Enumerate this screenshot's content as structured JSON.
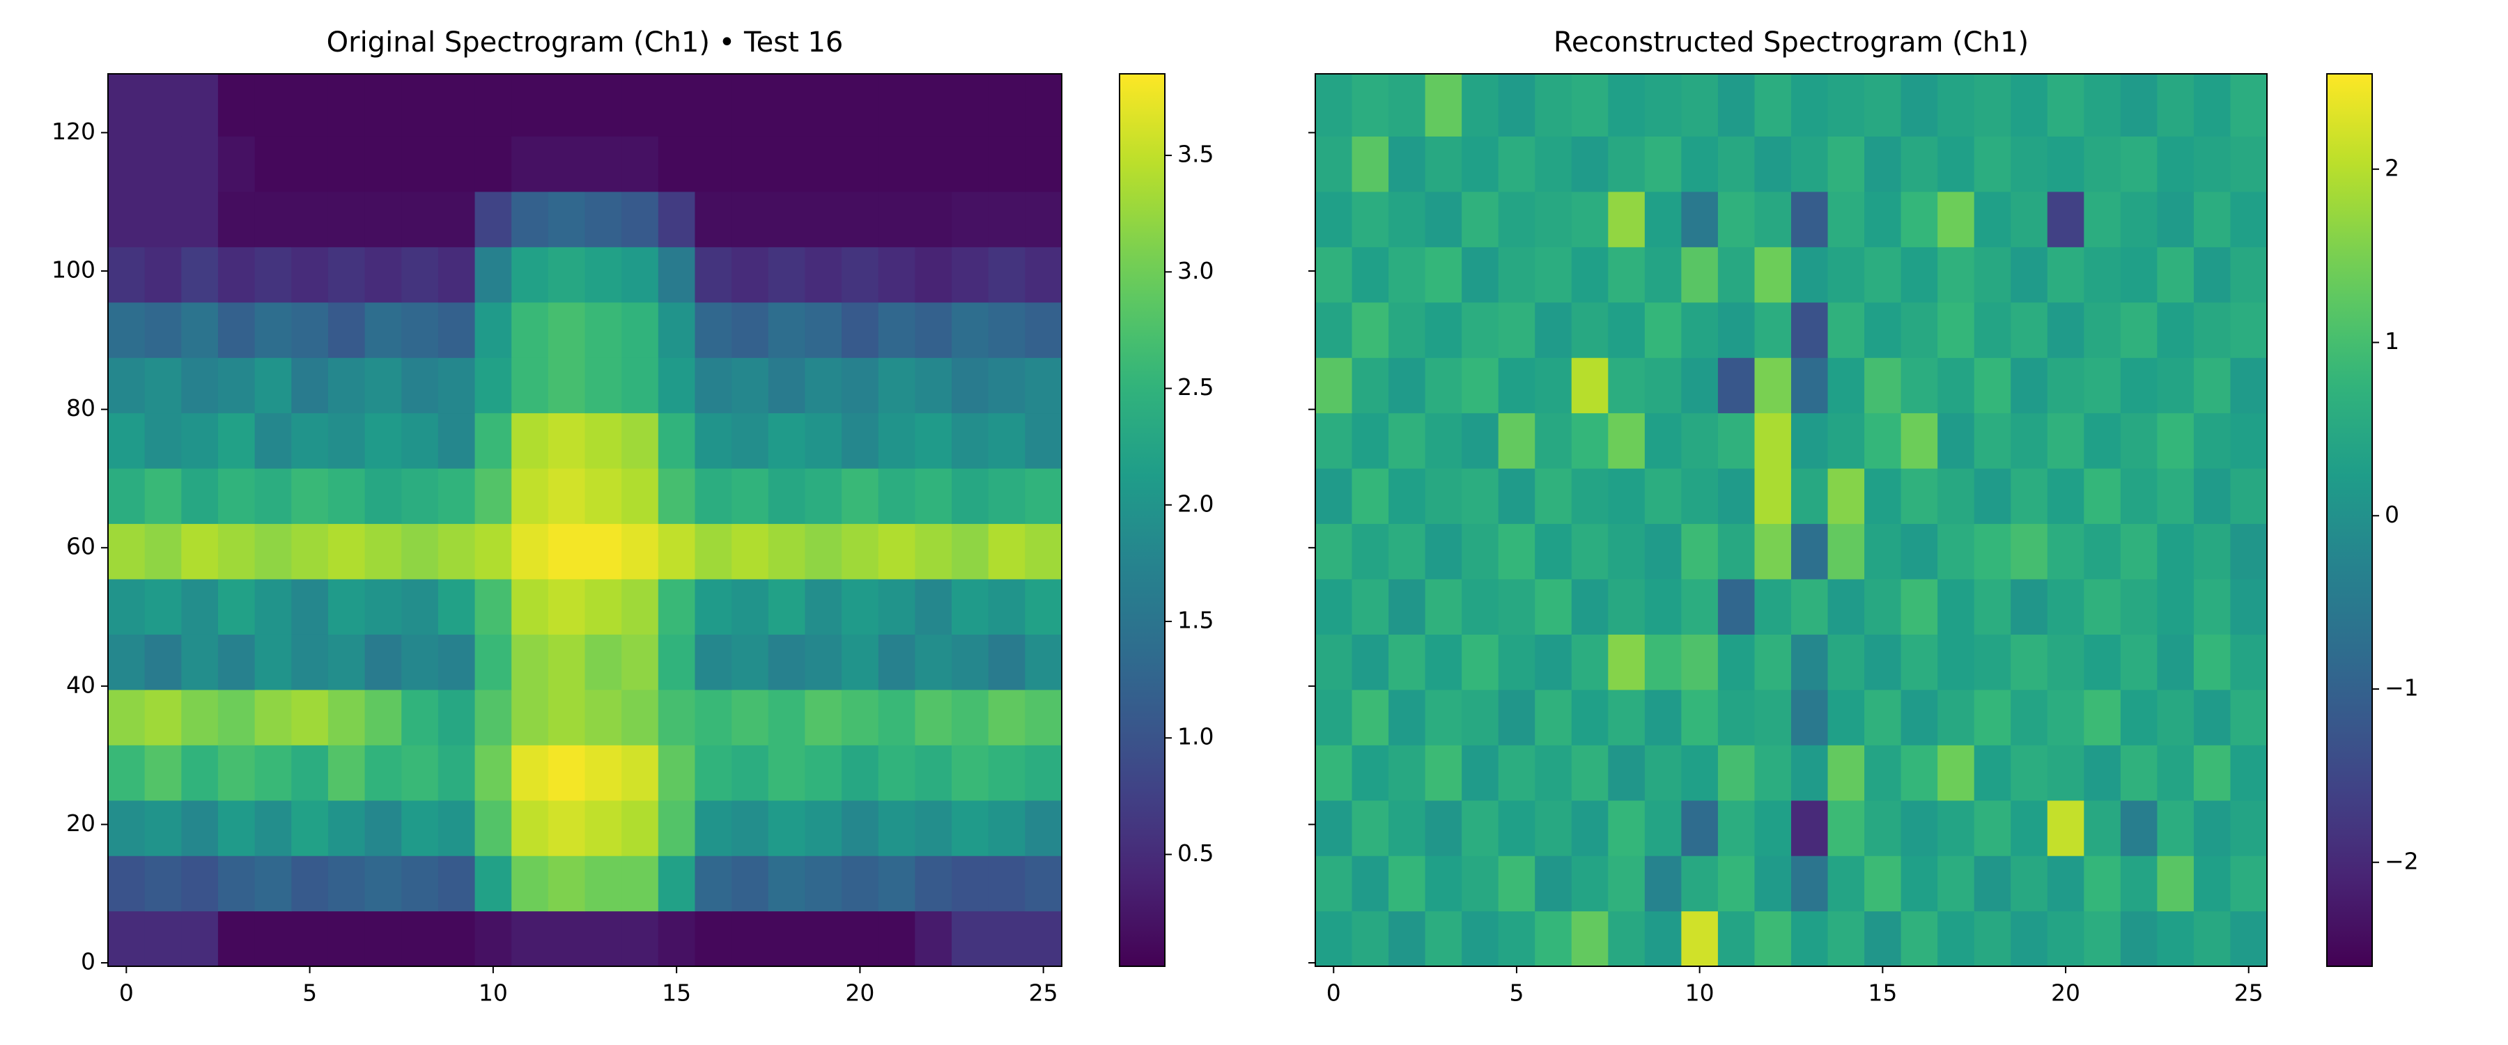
{
  "chart_data": [
    {
      "type": "heatmap",
      "title": "Original Spectrogram (Ch1) • Test 16",
      "colormap": "viridis",
      "x": [
        0,
        1,
        2,
        3,
        4,
        5,
        6,
        7,
        8,
        9,
        10,
        11,
        12,
        13,
        14,
        15,
        16,
        17,
        18,
        19,
        20,
        21,
        22,
        23,
        24,
        25
      ],
      "y_edges": [
        -0.5,
        7.5,
        15.5,
        23.5,
        31.5,
        39.5,
        47.5,
        55.5,
        63.5,
        71.5,
        79.5,
        87.5,
        95.5,
        103.5,
        111.5,
        119.5,
        128.5
      ],
      "xlim": [
        -0.5,
        25.5
      ],
      "ylim": [
        -0.5,
        128.5
      ],
      "xticks": [
        0,
        5,
        10,
        15,
        20,
        25
      ],
      "yticks": [
        0,
        20,
        40,
        60,
        80,
        100,
        120
      ],
      "ytick_labels": true,
      "clim": [
        0.02,
        3.85
      ],
      "cticks": [
        0.5,
        {
          "value": 1,
          "label": "1.0"
        },
        1.5,
        {
          "value": 2,
          "label": "2.0"
        },
        2.5,
        {
          "value": 3,
          "label": "3.0"
        },
        3.5
      ],
      "values": [
        [
          0.5,
          0.5,
          0.5,
          0.1,
          0.1,
          0.1,
          0.1,
          0.1,
          0.1,
          0.1,
          0.2,
          0.3,
          0.3,
          0.3,
          0.3,
          0.2,
          0.1,
          0.1,
          0.1,
          0.1,
          0.1,
          0.1,
          0.3,
          0.6,
          0.6,
          0.6
        ],
        [
          1.0,
          1.1,
          1.0,
          1.2,
          1.3,
          1.1,
          1.2,
          1.3,
          1.2,
          1.1,
          2.2,
          3.0,
          3.1,
          3.0,
          3.0,
          2.2,
          1.3,
          1.2,
          1.4,
          1.3,
          1.2,
          1.3,
          1.1,
          1.0,
          1.0,
          1.1
        ],
        [
          1.9,
          2.0,
          1.8,
          2.1,
          1.9,
          2.2,
          2.0,
          1.8,
          2.1,
          2.0,
          2.8,
          3.5,
          3.6,
          3.5,
          3.4,
          2.8,
          2.0,
          1.9,
          2.1,
          2.0,
          1.8,
          2.0,
          1.9,
          2.1,
          2.0,
          1.8
        ],
        [
          2.6,
          2.8,
          2.5,
          2.7,
          2.6,
          2.4,
          2.8,
          2.5,
          2.6,
          2.4,
          3.0,
          3.7,
          3.8,
          3.7,
          3.6,
          2.9,
          2.5,
          2.4,
          2.6,
          2.5,
          2.3,
          2.5,
          2.4,
          2.6,
          2.5,
          2.4
        ],
        [
          3.2,
          3.3,
          3.1,
          3.0,
          3.2,
          3.3,
          3.1,
          2.9,
          2.5,
          2.3,
          2.8,
          3.2,
          3.3,
          3.2,
          3.1,
          2.7,
          2.6,
          2.7,
          2.6,
          2.8,
          2.7,
          2.6,
          2.8,
          2.7,
          2.9,
          2.8
        ],
        [
          1.8,
          1.6,
          1.9,
          1.7,
          2.0,
          1.8,
          1.9,
          1.6,
          1.8,
          1.7,
          2.6,
          3.2,
          3.3,
          3.1,
          3.2,
          2.5,
          1.8,
          1.9,
          1.7,
          1.8,
          2.0,
          1.7,
          1.9,
          1.8,
          1.6,
          1.9
        ],
        [
          2.0,
          2.1,
          1.9,
          2.2,
          2.0,
          1.8,
          2.1,
          2.0,
          1.9,
          2.2,
          2.7,
          3.4,
          3.5,
          3.4,
          3.3,
          2.6,
          2.1,
          2.0,
          2.2,
          1.9,
          2.1,
          2.0,
          1.8,
          2.1,
          2.0,
          2.2
        ],
        [
          3.3,
          3.2,
          3.4,
          3.3,
          3.2,
          3.3,
          3.4,
          3.3,
          3.2,
          3.3,
          3.4,
          3.7,
          3.8,
          3.8,
          3.7,
          3.5,
          3.3,
          3.4,
          3.3,
          3.2,
          3.3,
          3.4,
          3.3,
          3.2,
          3.4,
          3.3
        ],
        [
          2.4,
          2.6,
          2.3,
          2.5,
          2.4,
          2.6,
          2.5,
          2.3,
          2.4,
          2.5,
          2.8,
          3.5,
          3.6,
          3.5,
          3.4,
          2.7,
          2.4,
          2.5,
          2.3,
          2.4,
          2.6,
          2.4,
          2.5,
          2.3,
          2.4,
          2.5
        ],
        [
          2.1,
          1.9,
          2.0,
          2.2,
          1.8,
          2.0,
          1.9,
          2.1,
          2.0,
          1.8,
          2.6,
          3.4,
          3.5,
          3.4,
          3.3,
          2.5,
          2.0,
          1.9,
          2.1,
          2.0,
          1.8,
          2.0,
          2.1,
          1.9,
          2.0,
          1.8
        ],
        [
          1.8,
          1.9,
          1.7,
          1.8,
          2.0,
          1.6,
          1.8,
          1.9,
          1.7,
          1.8,
          2.2,
          2.6,
          2.7,
          2.6,
          2.5,
          2.1,
          1.7,
          1.8,
          1.6,
          1.8,
          1.7,
          1.9,
          1.8,
          1.6,
          1.7,
          1.8
        ],
        [
          1.4,
          1.3,
          1.5,
          1.2,
          1.4,
          1.3,
          1.1,
          1.4,
          1.3,
          1.2,
          2.1,
          2.6,
          2.7,
          2.6,
          2.5,
          2.0,
          1.3,
          1.2,
          1.4,
          1.3,
          1.1,
          1.3,
          1.2,
          1.4,
          1.3,
          1.2
        ],
        [
          0.6,
          0.5,
          0.7,
          0.5,
          0.6,
          0.5,
          0.6,
          0.5,
          0.6,
          0.5,
          1.7,
          2.2,
          2.3,
          2.2,
          2.1,
          1.6,
          0.6,
          0.5,
          0.6,
          0.5,
          0.6,
          0.5,
          0.4,
          0.5,
          0.6,
          0.5
        ],
        [
          0.4,
          0.4,
          0.4,
          0.15,
          0.15,
          0.15,
          0.15,
          0.15,
          0.15,
          0.15,
          0.8,
          1.2,
          1.3,
          1.2,
          1.1,
          0.7,
          0.15,
          0.15,
          0.15,
          0.15,
          0.15,
          0.15,
          0.15,
          0.2,
          0.2,
          0.2
        ],
        [
          0.4,
          0.4,
          0.4,
          0.2,
          0.1,
          0.1,
          0.1,
          0.1,
          0.1,
          0.1,
          0.1,
          0.2,
          0.2,
          0.2,
          0.2,
          0.1,
          0.1,
          0.1,
          0.1,
          0.1,
          0.1,
          0.1,
          0.1,
          0.1,
          0.1,
          0.1
        ],
        [
          0.4,
          0.4,
          0.4,
          0.1,
          0.1,
          0.1,
          0.1,
          0.1,
          0.1,
          0.1,
          0.1,
          0.1,
          0.1,
          0.1,
          0.1,
          0.1,
          0.1,
          0.1,
          0.1,
          0.1,
          0.1,
          0.1,
          0.1,
          0.1,
          0.1,
          0.1
        ]
      ]
    },
    {
      "type": "heatmap",
      "title": "Reconstructed Spectrogram (Ch1)",
      "colormap": "viridis",
      "x": [
        0,
        1,
        2,
        3,
        4,
        5,
        6,
        7,
        8,
        9,
        10,
        11,
        12,
        13,
        14,
        15,
        16,
        17,
        18,
        19,
        20,
        21,
        22,
        23,
        24,
        25
      ],
      "y_edges": [
        -0.5,
        7.5,
        15.5,
        23.5,
        31.5,
        39.5,
        47.5,
        55.5,
        63.5,
        71.5,
        79.5,
        87.5,
        95.5,
        103.5,
        111.5,
        119.5,
        128.5
      ],
      "xlim": [
        -0.5,
        25.5
      ],
      "ylim": [
        -0.5,
        128.5
      ],
      "xticks": [
        0,
        5,
        10,
        15,
        20,
        25
      ],
      "yticks": [
        0,
        20,
        40,
        60,
        80,
        100,
        120
      ],
      "ytick_labels": false,
      "clim": [
        -2.6,
        2.55
      ],
      "cticks": [
        {
          "value": -2,
          "label": "−2"
        },
        {
          "value": -1,
          "label": "−1"
        },
        0,
        1,
        2
      ],
      "values": [
        [
          0.3,
          0.5,
          0.1,
          0.6,
          0.2,
          0.4,
          0.8,
          1.3,
          0.5,
          0.2,
          2.2,
          0.4,
          0.9,
          0.3,
          0.6,
          0.1,
          0.7,
          0.3,
          0.5,
          0.2,
          0.4,
          0.6,
          0.1,
          0.3,
          0.5,
          0.2
        ],
        [
          0.6,
          0.2,
          0.8,
          0.3,
          0.5,
          0.9,
          0.1,
          0.4,
          0.7,
          -0.3,
          0.5,
          0.8,
          0.2,
          -0.6,
          0.4,
          0.9,
          0.3,
          0.6,
          0.1,
          0.5,
          0.2,
          0.8,
          0.4,
          1.2,
          0.3,
          0.6
        ],
        [
          0.2,
          0.7,
          0.4,
          0.1,
          0.6,
          0.3,
          0.5,
          0.2,
          0.8,
          0.4,
          -0.8,
          0.6,
          0.3,
          -2.0,
          0.9,
          0.5,
          0.2,
          0.4,
          0.7,
          0.3,
          2.1,
          0.5,
          -0.4,
          0.6,
          0.2,
          0.4
        ],
        [
          0.8,
          0.3,
          0.5,
          0.9,
          0.2,
          0.6,
          0.4,
          0.7,
          0.1,
          0.5,
          0.3,
          1.0,
          0.6,
          0.2,
          1.3,
          0.4,
          0.8,
          1.4,
          0.3,
          0.6,
          0.5,
          0.2,
          0.7,
          0.4,
          0.9,
          0.3
        ],
        [
          0.4,
          0.9,
          0.2,
          0.6,
          0.5,
          0.1,
          0.7,
          0.3,
          0.6,
          0.2,
          0.8,
          0.4,
          0.5,
          -0.5,
          0.3,
          0.7,
          0.2,
          0.5,
          0.8,
          0.4,
          0.6,
          0.9,
          0.3,
          0.5,
          0.2,
          0.6
        ],
        [
          0.5,
          0.2,
          0.7,
          0.3,
          0.8,
          0.4,
          0.2,
          0.6,
          1.6,
          0.9,
          1.1,
          0.3,
          0.7,
          -0.2,
          0.5,
          0.2,
          0.6,
          0.3,
          0.4,
          0.7,
          0.5,
          0.3,
          0.6,
          0.2,
          0.8,
          0.4
        ],
        [
          0.3,
          0.6,
          0.1,
          0.7,
          0.4,
          0.5,
          0.8,
          0.2,
          0.5,
          0.3,
          0.6,
          -0.9,
          0.4,
          0.7,
          0.2,
          0.5,
          0.9,
          0.3,
          0.6,
          0.1,
          0.4,
          0.7,
          0.5,
          0.3,
          0.6,
          0.2
        ],
        [
          0.7,
          0.4,
          0.6,
          0.2,
          0.5,
          0.8,
          0.3,
          0.6,
          0.4,
          0.2,
          0.9,
          0.5,
          1.5,
          -0.7,
          1.3,
          0.4,
          0.2,
          0.6,
          0.8,
          1.0,
          0.6,
          0.4,
          0.7,
          0.3,
          0.5,
          0.1
        ],
        [
          0.2,
          0.8,
          0.3,
          0.5,
          0.6,
          0.2,
          0.7,
          0.4,
          0.3,
          0.6,
          0.4,
          0.2,
          1.9,
          0.5,
          1.6,
          0.3,
          0.7,
          0.5,
          0.2,
          0.6,
          0.3,
          0.8,
          0.4,
          0.6,
          0.2,
          0.5
        ],
        [
          0.6,
          0.3,
          0.7,
          0.4,
          0.2,
          1.3,
          0.5,
          0.8,
          1.4,
          0.3,
          0.5,
          0.7,
          1.9,
          0.2,
          0.4,
          0.8,
          1.4,
          0.2,
          0.6,
          0.4,
          0.7,
          0.3,
          0.5,
          0.8,
          0.4,
          0.3
        ],
        [
          1.2,
          0.5,
          0.2,
          0.6,
          0.8,
          0.3,
          0.4,
          2.0,
          0.6,
          0.5,
          0.2,
          -1.2,
          1.5,
          -0.8,
          0.3,
          1.0,
          0.6,
          0.4,
          0.8,
          0.2,
          0.5,
          0.6,
          0.3,
          0.4,
          0.7,
          0.2
        ],
        [
          0.4,
          0.9,
          0.5,
          0.3,
          0.6,
          0.7,
          0.2,
          0.5,
          0.3,
          0.8,
          0.4,
          0.2,
          0.6,
          -1.3,
          0.7,
          0.3,
          0.5,
          0.8,
          0.4,
          0.6,
          0.2,
          0.5,
          0.7,
          0.3,
          0.5,
          0.6
        ],
        [
          0.7,
          0.3,
          0.6,
          0.8,
          0.2,
          0.5,
          0.6,
          0.3,
          0.7,
          0.4,
          1.2,
          0.5,
          1.4,
          0.2,
          0.4,
          0.6,
          0.3,
          0.7,
          0.5,
          0.2,
          0.6,
          0.4,
          0.3,
          0.7,
          0.2,
          0.5
        ],
        [
          0.3,
          0.6,
          0.4,
          0.2,
          0.7,
          0.4,
          0.5,
          0.6,
          1.7,
          0.3,
          -0.5,
          0.7,
          0.5,
          -1.1,
          0.6,
          0.3,
          0.8,
          1.4,
          0.3,
          0.5,
          -1.6,
          0.6,
          0.4,
          0.2,
          0.6,
          0.3
        ],
        [
          0.5,
          1.2,
          0.2,
          0.5,
          0.3,
          0.6,
          0.4,
          0.2,
          0.5,
          0.7,
          0.3,
          0.5,
          0.2,
          0.4,
          0.7,
          0.2,
          0.5,
          0.3,
          0.6,
          0.4,
          0.3,
          0.5,
          0.6,
          0.3,
          0.4,
          0.5
        ],
        [
          0.4,
          0.6,
          0.5,
          1.3,
          0.4,
          0.2,
          0.5,
          0.6,
          0.3,
          0.4,
          0.5,
          0.2,
          0.6,
          0.3,
          0.4,
          0.5,
          0.2,
          0.4,
          0.5,
          0.3,
          0.6,
          0.4,
          0.2,
          0.5,
          0.3,
          0.6
        ]
      ]
    }
  ]
}
